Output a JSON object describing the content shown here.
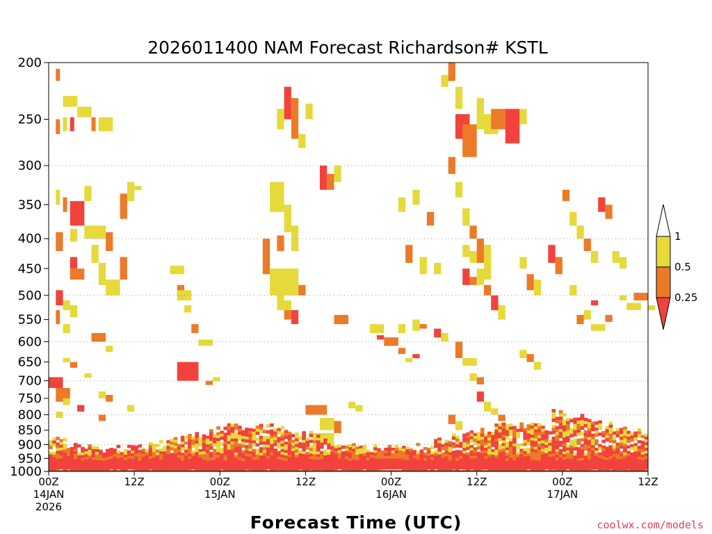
{
  "chart_data": {
    "type": "heatmap",
    "title": "2026011400 NAM Forecast Richardson# KSTL",
    "xlabel": "Forecast Time (UTC)",
    "ylabel": "",
    "y_scale": "log (pressure, inverted)",
    "ylim": [
      1000,
      200
    ],
    "y_ticks": [
      200,
      250,
      300,
      350,
      400,
      450,
      500,
      550,
      600,
      650,
      700,
      750,
      800,
      850,
      900,
      950,
      1000
    ],
    "xlim": [
      "2026-01-14 00Z",
      "2026-01-17 12Z"
    ],
    "x_ticks": [
      {
        "hour": 0,
        "lines": [
          "00Z",
          "14JAN",
          "2026"
        ]
      },
      {
        "hour": 12,
        "lines": [
          "12Z"
        ]
      },
      {
        "hour": 24,
        "lines": [
          "00Z",
          "15JAN"
        ]
      },
      {
        "hour": 36,
        "lines": [
          "12Z"
        ]
      },
      {
        "hour": 48,
        "lines": [
          "00Z",
          "16JAN"
        ]
      },
      {
        "hour": 60,
        "lines": [
          "12Z"
        ]
      },
      {
        "hour": 72,
        "lines": [
          "00Z",
          "17JAN"
        ]
      },
      {
        "hour": 84,
        "lines": [
          "12Z"
        ]
      }
    ],
    "grid": "dotted horizontal at 300, 400, 500, 600, 700, 800, 900",
    "legend": {
      "position": "right",
      "labels": [
        "1",
        "0.5",
        "0.25"
      ],
      "colors": [
        "#e6d93a",
        "#ec7a28",
        "#f2423c"
      ],
      "over_color": "#ffffff"
    },
    "surface": {
      "color": "#9a5530",
      "pressure_top": 995
    },
    "bands": [
      {
        "level": 1,
        "color": "#e6d93a"
      },
      {
        "level": 2,
        "color": "#ec7a28"
      },
      {
        "level": 3,
        "color": "#f2423c"
      }
    ],
    "cells": [
      [
        1,
        1,
        205,
        215
      ],
      [
        2,
        4,
        228,
        238
      ],
      [
        4,
        6,
        238,
        248
      ],
      [
        1,
        1,
        250,
        265
      ],
      [
        2,
        2,
        248,
        262
      ],
      [
        3,
        3,
        248,
        262
      ],
      [
        6,
        6,
        248,
        262
      ],
      [
        7,
        9,
        248,
        262
      ],
      [
        1,
        1,
        330,
        350
      ],
      [
        2,
        2,
        340,
        360
      ],
      [
        3,
        5,
        345,
        380
      ],
      [
        5,
        6,
        325,
        345
      ],
      [
        10,
        11,
        335,
        370
      ],
      [
        11,
        12,
        320,
        345
      ],
      [
        12,
        13,
        325,
        330
      ],
      [
        1,
        2,
        390,
        420
      ],
      [
        3,
        4,
        385,
        405
      ],
      [
        5,
        8,
        380,
        400
      ],
      [
        8,
        9,
        390,
        420
      ],
      [
        6,
        7,
        410,
        440
      ],
      [
        3,
        4,
        430,
        450
      ],
      [
        3,
        5,
        450,
        470
      ],
      [
        7,
        8,
        440,
        480
      ],
      [
        8,
        10,
        470,
        500
      ],
      [
        10,
        11,
        430,
        470
      ],
      [
        1,
        2,
        490,
        520
      ],
      [
        2,
        3,
        510,
        530
      ],
      [
        1,
        1,
        530,
        560
      ],
      [
        3,
        4,
        520,
        545
      ],
      [
        2,
        3,
        560,
        580
      ],
      [
        6,
        8,
        580,
        600
      ],
      [
        8,
        9,
        610,
        625
      ],
      [
        2,
        3,
        640,
        650
      ],
      [
        3,
        4,
        650,
        665
      ],
      [
        5,
        6,
        680,
        690
      ],
      [
        0,
        2,
        690,
        720
      ],
      [
        1,
        3,
        720,
        760
      ],
      [
        2,
        3,
        750,
        770
      ],
      [
        7,
        8,
        730,
        750
      ],
      [
        8,
        9,
        740,
        760
      ],
      [
        4,
        5,
        770,
        790
      ],
      [
        1,
        2,
        790,
        810
      ],
      [
        7,
        8,
        800,
        820
      ],
      [
        11,
        12,
        770,
        790
      ],
      [
        17,
        19,
        445,
        460
      ],
      [
        18,
        19,
        480,
        500
      ],
      [
        18,
        20,
        490,
        510
      ],
      [
        19,
        20,
        520,
        535
      ],
      [
        20,
        21,
        560,
        580
      ],
      [
        21,
        23,
        595,
        610
      ],
      [
        18,
        21,
        650,
        700
      ],
      [
        22,
        23,
        700,
        710
      ],
      [
        23,
        24,
        690,
        700
      ],
      [
        32,
        33,
        500,
        520
      ],
      [
        33,
        34,
        530,
        550
      ],
      [
        34,
        35,
        530,
        560
      ],
      [
        31,
        33,
        320,
        360
      ],
      [
        32,
        33,
        395,
        420
      ],
      [
        33,
        34,
        350,
        390
      ],
      [
        34,
        35,
        380,
        420
      ],
      [
        30,
        31,
        400,
        460
      ],
      [
        31,
        35,
        450,
        500
      ],
      [
        32,
        34,
        510,
        530
      ],
      [
        35,
        36,
        480,
        500
      ],
      [
        32,
        33,
        240,
        260
      ],
      [
        33,
        34,
        220,
        250
      ],
      [
        34,
        35,
        230,
        270
      ],
      [
        36,
        37,
        235,
        250
      ],
      [
        35,
        36,
        265,
        280
      ],
      [
        39,
        40,
        310,
        330
      ],
      [
        38,
        39,
        300,
        330
      ],
      [
        40,
        41,
        300,
        320
      ],
      [
        36,
        39,
        770,
        800
      ],
      [
        38,
        40,
        810,
        850
      ],
      [
        37,
        40,
        860,
        900
      ],
      [
        40,
        41,
        820,
        860
      ],
      [
        42,
        43,
        760,
        780
      ],
      [
        43,
        44,
        770,
        790
      ],
      [
        40,
        42,
        540,
        560
      ],
      [
        45,
        47,
        560,
        580
      ],
      [
        46,
        47,
        585,
        595
      ],
      [
        47,
        49,
        590,
        610
      ],
      [
        49,
        50,
        560,
        580
      ],
      [
        51,
        52,
        550,
        575
      ],
      [
        52,
        53,
        560,
        570
      ],
      [
        54,
        55,
        570,
        590
      ],
      [
        55,
        56,
        580,
        600
      ],
      [
        50,
        51,
        410,
        440
      ],
      [
        49,
        50,
        340,
        360
      ],
      [
        51,
        52,
        330,
        350
      ],
      [
        53,
        54,
        360,
        380
      ],
      [
        52,
        53,
        430,
        460
      ],
      [
        54,
        55,
        440,
        460
      ],
      [
        49,
        50,
        615,
        630
      ],
      [
        50,
        51,
        640,
        650
      ],
      [
        51,
        52,
        630,
        640
      ],
      [
        57,
        58,
        600,
        640
      ],
      [
        58,
        60,
        640,
        660
      ],
      [
        59,
        60,
        680,
        700
      ],
      [
        60,
        61,
        690,
        710
      ],
      [
        60,
        61,
        730,
        760
      ],
      [
        61,
        62,
        760,
        790
      ],
      [
        56,
        57,
        800,
        830
      ],
      [
        57,
        58,
        820,
        850
      ],
      [
        62,
        63,
        780,
        800
      ],
      [
        63,
        64,
        800,
        820
      ],
      [
        64,
        65,
        830,
        850
      ],
      [
        66,
        67,
        620,
        640
      ],
      [
        67,
        68,
        630,
        650
      ],
      [
        68,
        69,
        650,
        670
      ],
      [
        70,
        71,
        410,
        440
      ],
      [
        71,
        72,
        430,
        460
      ],
      [
        73,
        74,
        480,
        500
      ],
      [
        75,
        76,
        530,
        550
      ],
      [
        74,
        75,
        540,
        560
      ],
      [
        76,
        77,
        510,
        520
      ],
      [
        76,
        78,
        560,
        575
      ],
      [
        78,
        79,
        540,
        555
      ],
      [
        80,
        81,
        500,
        510
      ],
      [
        81,
        83,
        515,
        530
      ],
      [
        82,
        84,
        495,
        510
      ],
      [
        84,
        85,
        520,
        530
      ],
      [
        55,
        56,
        210,
        220
      ],
      [
        56,
        57,
        200,
        215
      ],
      [
        57,
        58,
        220,
        240
      ],
      [
        57,
        59,
        245,
        270
      ],
      [
        58,
        60,
        255,
        290
      ],
      [
        60,
        61,
        230,
        260
      ],
      [
        61,
        63,
        245,
        265
      ],
      [
        62,
        64,
        240,
        260
      ],
      [
        64,
        66,
        240,
        275
      ],
      [
        66,
        67,
        240,
        255
      ],
      [
        56,
        57,
        290,
        310
      ],
      [
        57,
        58,
        320,
        340
      ],
      [
        58,
        59,
        355,
        380
      ],
      [
        59,
        60,
        380,
        400
      ],
      [
        58,
        59,
        410,
        430
      ],
      [
        59,
        60,
        420,
        440
      ],
      [
        60,
        61,
        400,
        440
      ],
      [
        61,
        62,
        410,
        440
      ],
      [
        58,
        59,
        450,
        480
      ],
      [
        59,
        60,
        465,
        480
      ],
      [
        60,
        61,
        450,
        480
      ],
      [
        61,
        62,
        430,
        470
      ],
      [
        61,
        62,
        480,
        500
      ],
      [
        62,
        63,
        500,
        530
      ],
      [
        63,
        64,
        520,
        550
      ],
      [
        67,
        68,
        460,
        490
      ],
      [
        68,
        69,
        470,
        500
      ],
      [
        66,
        67,
        430,
        450
      ],
      [
        72,
        73,
        330,
        345
      ],
      [
        73,
        74,
        360,
        380
      ],
      [
        74,
        75,
        380,
        400
      ],
      [
        75,
        76,
        400,
        420
      ],
      [
        76,
        77,
        420,
        440
      ],
      [
        77,
        78,
        340,
        360
      ],
      [
        78,
        79,
        350,
        370
      ],
      [
        79,
        80,
        420,
        440
      ],
      [
        80,
        81,
        430,
        450
      ]
    ],
    "surface_band": {
      "color": "#f2423c",
      "base_pressure": 965
    }
  }
}
